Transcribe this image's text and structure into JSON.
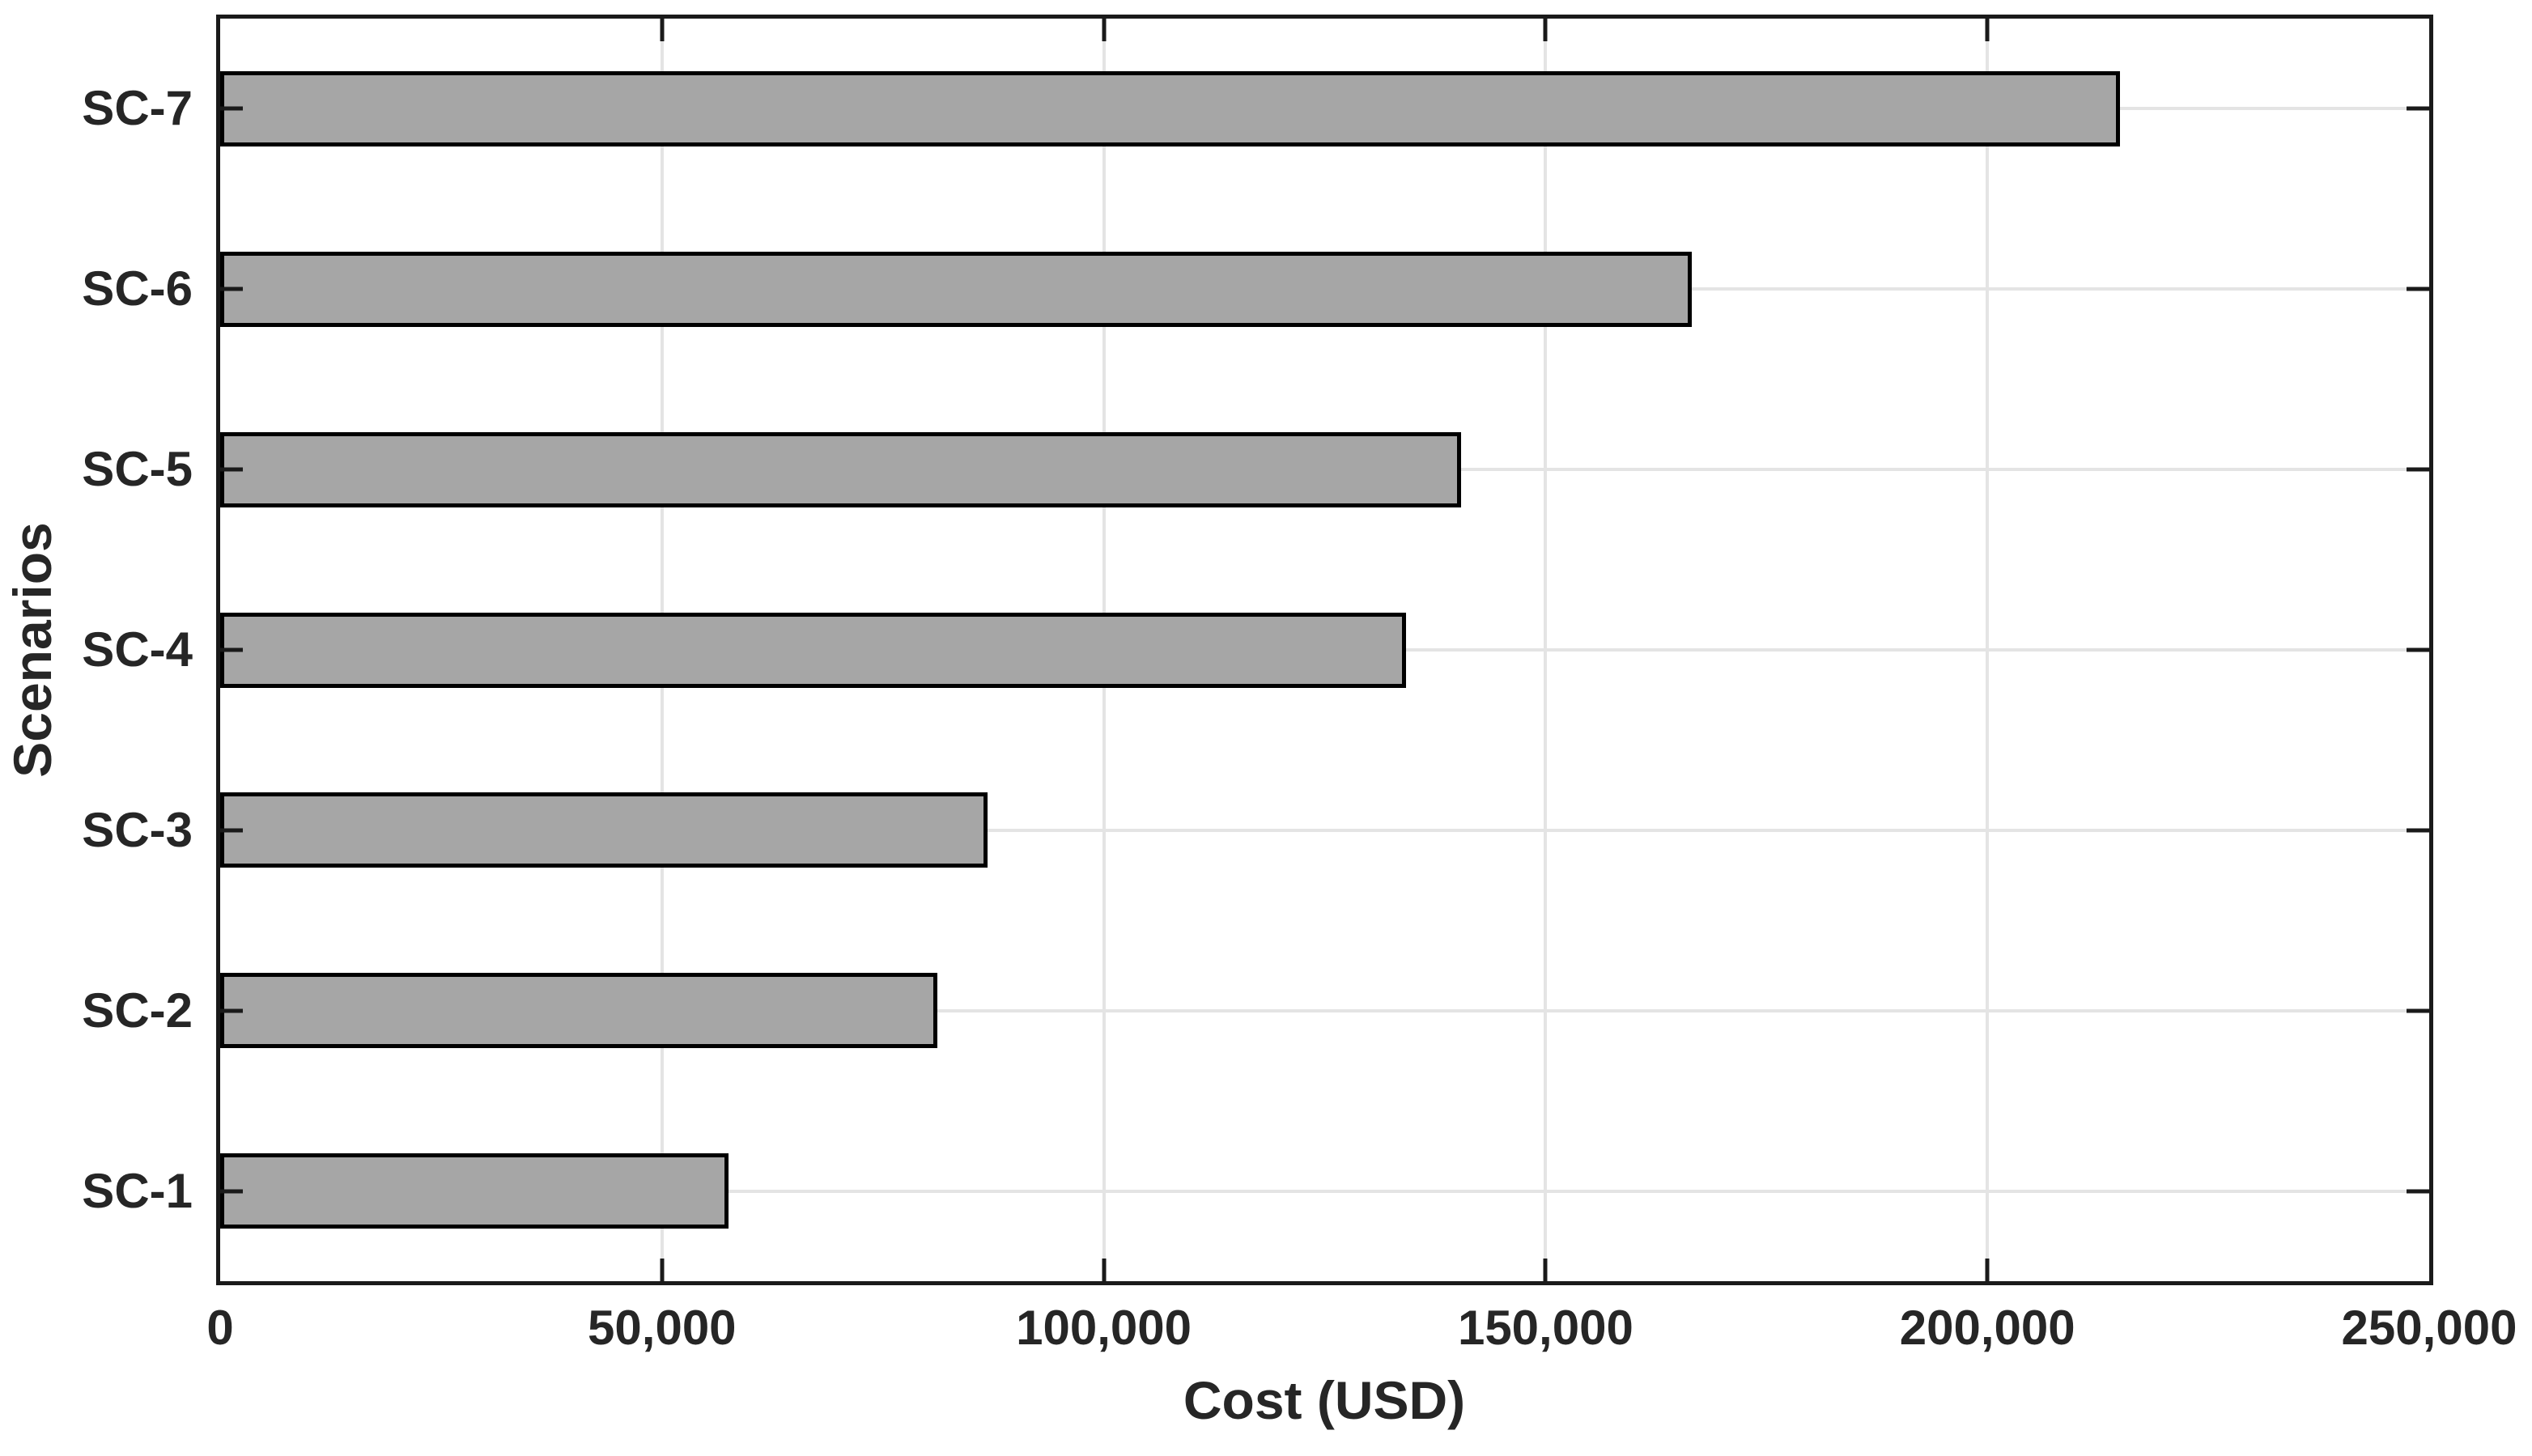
{
  "chart_data": {
    "type": "bar",
    "orientation": "horizontal",
    "title": "",
    "xlabel": "Cost (USD)",
    "ylabel": "Scenarios",
    "categories": [
      "SC-1",
      "SC-2",
      "SC-3",
      "SC-4",
      "SC-5",
      "SC-6",
      "SC-7"
    ],
    "values": [
      57500,
      81200,
      86800,
      134200,
      140400,
      166500,
      215000
    ],
    "display_order_top_to_bottom": [
      "SC-7",
      "SC-6",
      "SC-5",
      "SC-4",
      "SC-3",
      "SC-2",
      "SC-1"
    ],
    "xlim": [
      0,
      250000
    ],
    "xticks": [
      0,
      50000,
      100000,
      150000,
      200000,
      250000
    ],
    "xtick_labels": [
      "0",
      "50,000",
      "100,000",
      "150,000",
      "200,000",
      "250,000"
    ],
    "grid": "on",
    "tick_direction": "in",
    "legend": "none",
    "colors": {
      "bar_fill": "#a6a6a6",
      "bar_edge": "#000000",
      "axis": "#1a1a1a",
      "grid": "#e4e4e4",
      "text": "#262626",
      "background": "#ffffff"
    }
  }
}
